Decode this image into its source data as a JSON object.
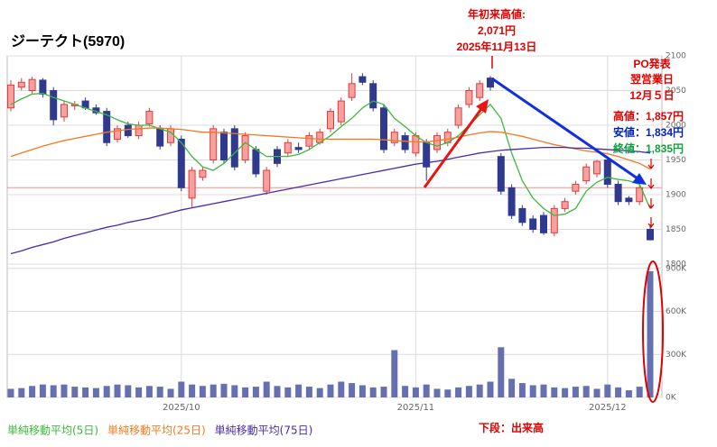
{
  "chart_data": {
    "type": "candlestick",
    "title": "ジーテクト(5970)",
    "categories": [
      null,
      null,
      null,
      null,
      null,
      null,
      null,
      null,
      null,
      null,
      null,
      null,
      null,
      null,
      null,
      null,
      "2025/10",
      null,
      null,
      null,
      null,
      null,
      null,
      null,
      null,
      null,
      null,
      null,
      null,
      null,
      null,
      null,
      null,
      null,
      null,
      null,
      null,
      null,
      "2025/11",
      null,
      null,
      null,
      null,
      null,
      null,
      null,
      null,
      null,
      null,
      null,
      null,
      null,
      null,
      null,
      null,
      null,
      "2025/12",
      null,
      null,
      null,
      null
    ],
    "open": [
      2025,
      2055,
      2050,
      2065,
      2050,
      2012,
      2028,
      2035,
      2025,
      2020,
      1980,
      2000,
      1985,
      2002,
      1995,
      1975,
      1980,
      1895,
      1925,
      1950,
      1990,
      1995,
      1950,
      1965,
      1905,
      1965,
      1960,
      1968,
      1970,
      1975,
      1995,
      2005,
      2040,
      2070,
      2060,
      2025,
      1975,
      1985,
      1960,
      1975,
      1965,
      1975,
      2000,
      2030,
      2040,
      2068,
      1955,
      1910,
      1880,
      1865,
      1870,
      1845,
      1880,
      1905,
      1920,
      1930,
      1950,
      1915,
      1895,
      1890,
      1850
    ],
    "high": [
      2065,
      2068,
      2070,
      2068,
      2055,
      2035,
      2035,
      2040,
      2030,
      2025,
      2000,
      2005,
      2005,
      2025,
      2000,
      2000,
      1985,
      1940,
      1940,
      2000,
      1995,
      2000,
      1990,
      1970,
      1940,
      1970,
      1980,
      1975,
      1990,
      1995,
      2025,
      2040,
      2075,
      2075,
      2065,
      2030,
      1995,
      1990,
      1990,
      1980,
      1990,
      1995,
      2030,
      2055,
      2065,
      2071,
      1960,
      1915,
      1885,
      1870,
      1875,
      1885,
      1895,
      1920,
      1945,
      1950,
      1955,
      1920,
      1898,
      1915,
      1857
    ],
    "low": [
      2020,
      2050,
      2045,
      2040,
      2000,
      2005,
      2022,
      2022,
      2015,
      1970,
      1975,
      1982,
      1980,
      1998,
      1965,
      1970,
      1905,
      1882,
      1920,
      1945,
      1945,
      1935,
      1945,
      1925,
      1900,
      1940,
      1955,
      1960,
      1965,
      1972,
      1990,
      2000,
      2035,
      2058,
      2020,
      1960,
      1970,
      1960,
      1955,
      1920,
      1960,
      1970,
      1995,
      2025,
      2035,
      2050,
      1900,
      1865,
      1855,
      1845,
      1842,
      1840,
      1875,
      1900,
      1915,
      1925,
      1910,
      1885,
      1885,
      1885,
      1834
    ],
    "close": [
      2058,
      2062,
      2066,
      2045,
      2008,
      2030,
      2030,
      2025,
      2018,
      1975,
      1995,
      1985,
      2000,
      2020,
      1970,
      1995,
      1910,
      1935,
      1935,
      1995,
      1950,
      1940,
      1985,
      1930,
      1935,
      1945,
      1975,
      1965,
      1985,
      1990,
      2020,
      2035,
      2060,
      2062,
      2025,
      1965,
      1990,
      1965,
      1985,
      1940,
      1985,
      1990,
      2025,
      2050,
      2060,
      2055,
      1905,
      1870,
      1860,
      1850,
      1845,
      1880,
      1890,
      1915,
      1940,
      1948,
      1915,
      1890,
      1890,
      1910,
      1835
    ],
    "up_color": "#e23b3b",
    "down_color": "#2f3a8f",
    "series": [
      {
        "name": "単純移動平均(5日)",
        "color": "#3cb83c",
        "values": [
          2030,
          2038,
          2045,
          2046,
          2040,
          2035,
          2030,
          2025,
          2020,
          2015,
          2008,
          2002,
          2000,
          2000,
          1995,
          1990,
          1975,
          1955,
          1940,
          1935,
          1945,
          1960,
          1975,
          1965,
          1955,
          1955,
          1955,
          1958,
          1965,
          1975,
          1985,
          1998,
          2010,
          2025,
          2035,
          2030,
          2010,
          1998,
          1985,
          1975,
          1970,
          1975,
          1985,
          2000,
          2015,
          2030,
          2010,
          1960,
          1920,
          1895,
          1880,
          1870,
          1872,
          1880,
          1905,
          1918,
          1925,
          1922,
          1920,
          1915,
          1880
        ]
      },
      {
        "name": "単純移動平均(25日)",
        "color": "#f07a20",
        "values": [
          1955,
          1960,
          1965,
          1970,
          1974,
          1978,
          1981,
          1984,
          1987,
          1990,
          1992,
          1994,
          1995,
          1996,
          1996,
          1995,
          1994,
          1992,
          1990,
          1990,
          1989,
          1988,
          1987,
          1986,
          1985,
          1984,
          1983,
          1982,
          1981,
          1980,
          1980,
          1980,
          1980,
          1980,
          1980,
          1979,
          1978,
          1977,
          1976,
          1976,
          1978,
          1980,
          1983,
          1986,
          1989,
          1991,
          1990,
          1987,
          1984,
          1980,
          1976,
          1972,
          1969,
          1966,
          1963,
          1961,
          1959,
          1955,
          1950,
          1945,
          1937
        ]
      },
      {
        "name": "単純移動平均(75日)",
        "color": "#4b2aa8",
        "values": [
          1815,
          1819,
          1824,
          1828,
          1832,
          1837,
          1841,
          1845,
          1849,
          1853,
          1856,
          1860,
          1863,
          1866,
          1870,
          1874,
          1878,
          1881,
          1884,
          1887,
          1890,
          1893,
          1896,
          1899,
          1902,
          1905,
          1908,
          1911,
          1914,
          1917,
          1920,
          1923,
          1926,
          1929,
          1932,
          1935,
          1938,
          1941,
          1944,
          1946,
          1948,
          1951,
          1954,
          1957,
          1960,
          1962,
          1964,
          1965,
          1966,
          1967,
          1968,
          1968,
          1968,
          1967,
          1967,
          1966,
          1965,
          1964,
          1963,
          1962,
          1960
        ]
      }
    ],
    "ref_line": {
      "value": 1910,
      "color": "#f09090"
    },
    "ylim": [
      1800,
      2100
    ],
    "yticks": [
      1800,
      1850,
      1900,
      1950,
      2000,
      2050,
      2100
    ],
    "volume": {
      "values": [
        60000,
        65000,
        80000,
        90000,
        85000,
        90000,
        75000,
        70000,
        65000,
        80000,
        90000,
        85000,
        70000,
        80000,
        75000,
        60000,
        110000,
        90000,
        80000,
        90000,
        95000,
        85000,
        70000,
        75000,
        110000,
        80000,
        70000,
        90000,
        75000,
        65000,
        90000,
        110000,
        100000,
        85000,
        70000,
        75000,
        330000,
        80000,
        70000,
        90000,
        60000,
        55000,
        70000,
        80000,
        90000,
        110000,
        350000,
        130000,
        100000,
        85000,
        90000,
        70000,
        65000,
        75000,
        80000,
        60000,
        90000,
        70000,
        50000,
        75000,
        880000
      ],
      "color": "#6670b0",
      "ylim": [
        0,
        930000
      ],
      "yticks": [
        {
          "value": 0,
          "label": "0K"
        },
        {
          "value": 300000,
          "label": "300K"
        },
        {
          "value": 600000,
          "label": "600K"
        },
        {
          "value": 900000,
          "label": "900K"
        }
      ]
    },
    "grid": true,
    "annotations": {
      "year_high": [
        "年初来高値:",
        "2,071円",
        "2025年11月13日"
      ],
      "po": [
        "PO発表",
        "翌営業日",
        "12月５日"
      ],
      "high": "高値：1,857円",
      "low": "安値：1,834円",
      "close": "終値：1,835円",
      "volume_note": "下段：出来高"
    }
  }
}
